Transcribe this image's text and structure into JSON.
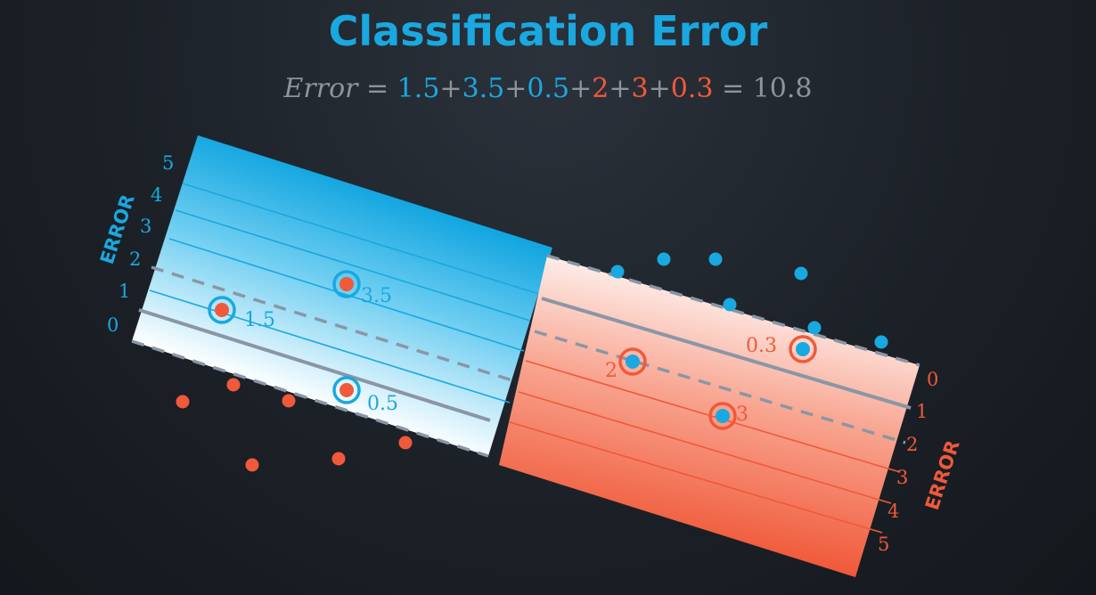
{
  "title": "Classification Error",
  "formula": {
    "label": "Error",
    "equals": "=",
    "plus": "+",
    "terms": [
      {
        "value": "1.5",
        "color": "#19a8e0"
      },
      {
        "value": "3.5",
        "color": "#19a8e0"
      },
      {
        "value": "0.5",
        "color": "#19a8e0"
      },
      {
        "value": "2",
        "color": "#f0593a"
      },
      {
        "value": "3",
        "color": "#f0593a"
      },
      {
        "value": "0.3",
        "color": "#f0593a"
      }
    ],
    "total": "10.8"
  },
  "colors": {
    "blue": "#19a8e0",
    "red": "#f0593a",
    "line_grey": "#8a96a6"
  },
  "blue_region": {
    "axis_title": "ERROR",
    "ticks": [
      "0",
      "1",
      "2",
      "3",
      "4",
      "5"
    ]
  },
  "red_region": {
    "axis_title": "ERROR",
    "ticks": [
      "0",
      "1",
      "2",
      "3",
      "4",
      "5"
    ]
  },
  "misclassified": [
    {
      "class": "red",
      "label": "1.5"
    },
    {
      "class": "red",
      "label": "3.5"
    },
    {
      "class": "blue",
      "label": "0.5"
    },
    {
      "class": "blue",
      "label": "2"
    },
    {
      "class": "blue",
      "label": "3"
    },
    {
      "class": "blue",
      "label": "0.3"
    }
  ]
}
